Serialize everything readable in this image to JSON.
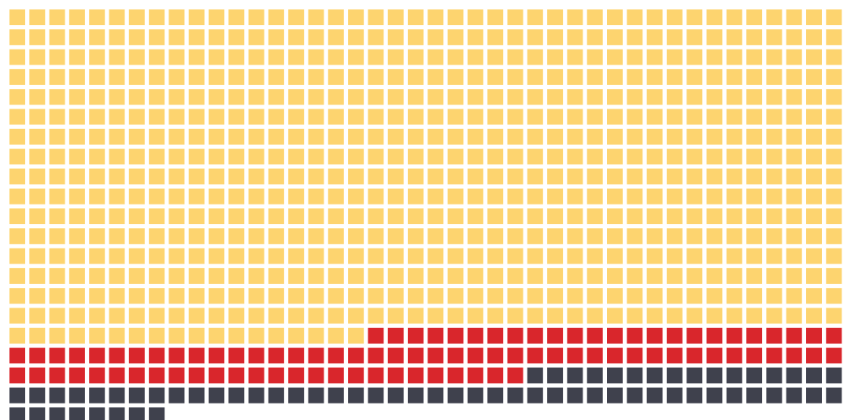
{
  "chart_data": {
    "type": "waffle",
    "values": [
      690,
      92,
      66
    ],
    "colors": [
      "#fdd46f",
      "#d9262c",
      "#3f414d"
    ]
  }
}
